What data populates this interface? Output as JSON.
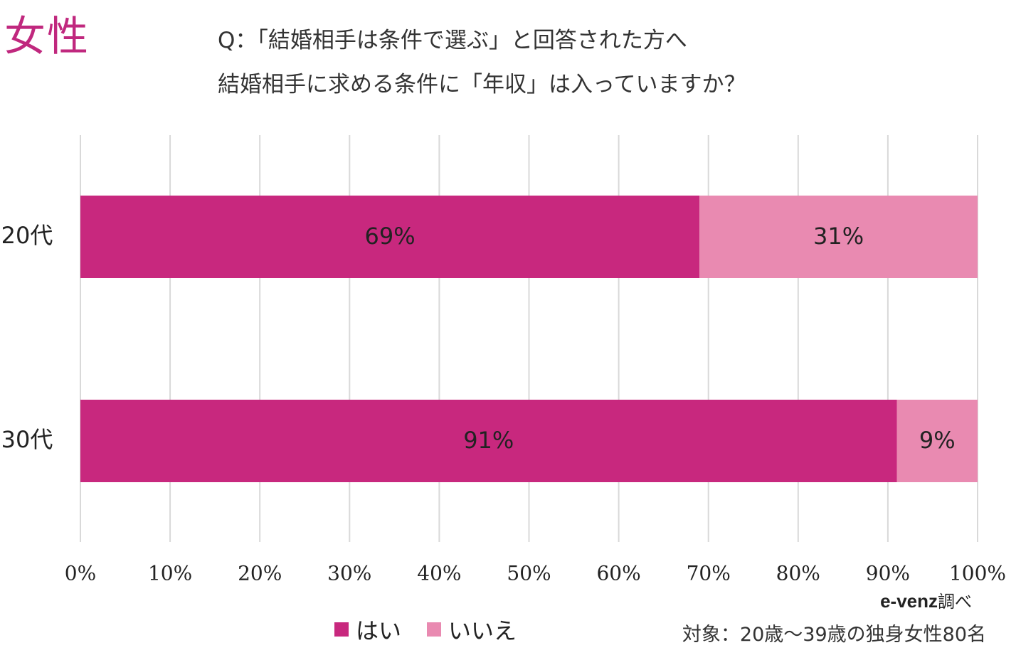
{
  "header": {
    "badge": "女性",
    "question_line1": "Q：「結婚相手は条件で選ぶ」と回答された方へ",
    "question_line2": "結婚相手に求める条件に「年収」は入っていますか？"
  },
  "colors": {
    "accent": "#c0287e",
    "yes": "#c8287e",
    "no": "#e98ab1",
    "grid": "#d9d9d9"
  },
  "chart_data": {
    "type": "bar",
    "orientation": "horizontal",
    "stacked": true,
    "categories": [
      "20代",
      "30代"
    ],
    "series": [
      {
        "name": "はい",
        "values": [
          69,
          91
        ],
        "labels": [
          "69%",
          "91%"
        ]
      },
      {
        "name": "いいえ",
        "values": [
          31,
          9
        ],
        "labels": [
          "31%",
          "9%"
        ]
      }
    ],
    "xlim": [
      0,
      100
    ],
    "xticks": [
      "0%",
      "10%",
      "20%",
      "30%",
      "40%",
      "50%",
      "60%",
      "70%",
      "80%",
      "90%",
      "100%"
    ],
    "grid": true,
    "legend_position": "bottom"
  },
  "credit": {
    "brand": "e-venz",
    "suffix": "調べ"
  },
  "footnote": "対象：20歳〜39歳の独身女性80名"
}
